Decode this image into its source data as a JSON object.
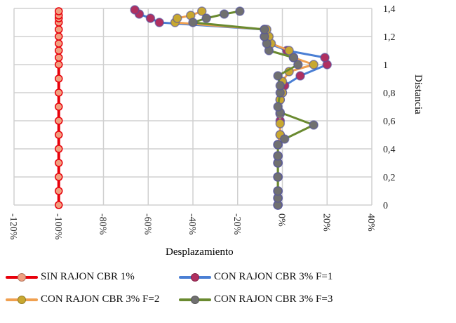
{
  "chart_data": {
    "type": "line",
    "xlabel": "Desplazamiento",
    "ylabel": "Distancia",
    "xlim": [
      -120,
      40
    ],
    "ylim": [
      0,
      1.4
    ],
    "x_ticks": [
      "-120%",
      "-100%",
      "-80%",
      "-60%",
      "-40%",
      "-20%",
      "0%",
      "20%",
      "40%"
    ],
    "x_tick_values": [
      -120,
      -100,
      -80,
      -60,
      -40,
      -20,
      0,
      20,
      40
    ],
    "y_ticks": [
      "0",
      "0,2",
      "0,4",
      "0,6",
      "0,8",
      "1",
      "1,2",
      "1,4"
    ],
    "y_tick_values": [
      0,
      0.2,
      0.4,
      0.6,
      0.8,
      1.0,
      1.2,
      1.4
    ],
    "grid": true,
    "y_axis_position": "right",
    "legend_position": "bottom",
    "series": [
      {
        "name": "SIN RAJON CBR  1%",
        "line_color": "#e8000b",
        "marker_color": "#f0a080",
        "points": [
          [
            -100,
            0
          ],
          [
            -100,
            0.1
          ],
          [
            -100,
            0.2
          ],
          [
            -100,
            0.3
          ],
          [
            -100,
            0.4
          ],
          [
            -100,
            0.5
          ],
          [
            -100,
            0.6
          ],
          [
            -100,
            0.7
          ],
          [
            -100,
            0.8
          ],
          [
            -100,
            0.9
          ],
          [
            -100,
            1.0
          ],
          [
            -100,
            1.05
          ],
          [
            -100,
            1.1
          ],
          [
            -100,
            1.15
          ],
          [
            -100,
            1.2
          ],
          [
            -100,
            1.25
          ],
          [
            -100,
            1.3
          ],
          [
            -100,
            1.33
          ],
          [
            -100,
            1.35
          ],
          [
            -100,
            1.38
          ]
        ]
      },
      {
        "name": "CON RAJON CBR 3% F=1",
        "line_color": "#4a7fd4",
        "marker_color": "#b03060",
        "points": [
          [
            -2,
            0
          ],
          [
            -2,
            0.05
          ],
          [
            -2,
            0.1
          ],
          [
            -2,
            0.2
          ],
          [
            -2,
            0.3
          ],
          [
            -2,
            0.35
          ],
          [
            -2,
            0.43
          ],
          [
            -1,
            0.5
          ],
          [
            -1,
            0.6
          ],
          [
            -1,
            0.65
          ],
          [
            -1,
            0.75
          ],
          [
            0,
            0.8
          ],
          [
            1,
            0.85
          ],
          [
            8,
            0.92
          ],
          [
            20,
            1.0
          ],
          [
            19,
            1.05
          ],
          [
            2,
            1.1
          ],
          [
            -6,
            1.15
          ],
          [
            -8,
            1.2
          ],
          [
            -8,
            1.25
          ],
          [
            -55,
            1.3
          ],
          [
            -59,
            1.33
          ],
          [
            -64,
            1.36
          ],
          [
            -66,
            1.39
          ]
        ]
      },
      {
        "name": "CON RAJON CBR 3% F=2",
        "line_color": "#f0a050",
        "marker_color": "#c8a830",
        "points": [
          [
            -2,
            0
          ],
          [
            -2,
            0.05
          ],
          [
            -2,
            0.1
          ],
          [
            -2,
            0.2
          ],
          [
            -2,
            0.3
          ],
          [
            -2,
            0.35
          ],
          [
            -2,
            0.43
          ],
          [
            -1,
            0.5
          ],
          [
            -1,
            0.58
          ],
          [
            -1,
            0.65
          ],
          [
            -1,
            0.75
          ],
          [
            0,
            0.8
          ],
          [
            0,
            0.88
          ],
          [
            3,
            0.95
          ],
          [
            14,
            1.0
          ],
          [
            5,
            1.05
          ],
          [
            3,
            1.1
          ],
          [
            -5,
            1.15
          ],
          [
            -6,
            1.2
          ],
          [
            -7,
            1.25
          ],
          [
            -48,
            1.3
          ],
          [
            -47,
            1.33
          ],
          [
            -41,
            1.35
          ],
          [
            -36,
            1.38
          ]
        ]
      },
      {
        "name": "CON RAJON CBR 3% F=3",
        "line_color": "#6a8a30",
        "marker_color": "#707070",
        "points": [
          [
            -2,
            0
          ],
          [
            -2,
            0.05
          ],
          [
            -2,
            0.1
          ],
          [
            -2,
            0.2
          ],
          [
            -2,
            0.3
          ],
          [
            -2,
            0.35
          ],
          [
            -2,
            0.43
          ],
          [
            1,
            0.47
          ],
          [
            14,
            0.57
          ],
          [
            -1,
            0.66
          ],
          [
            -2,
            0.7
          ],
          [
            -1,
            0.8
          ],
          [
            -1,
            0.85
          ],
          [
            -2,
            0.92
          ],
          [
            7,
            1.0
          ],
          [
            5,
            1.05
          ],
          [
            -6,
            1.1
          ],
          [
            -7,
            1.15
          ],
          [
            -8,
            1.2
          ],
          [
            -8,
            1.25
          ],
          [
            -40,
            1.3
          ],
          [
            -34,
            1.33
          ],
          [
            -26,
            1.36
          ],
          [
            -19,
            1.38
          ]
        ]
      }
    ]
  }
}
